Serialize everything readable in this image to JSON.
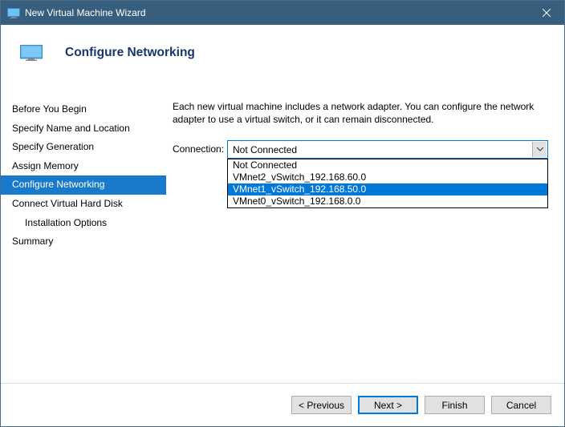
{
  "titlebar": {
    "title": "New Virtual Machine Wizard",
    "accent": "#385e7e"
  },
  "header": {
    "title": "Configure Networking",
    "title_color": "#17356b"
  },
  "sidebar": {
    "items": [
      {
        "label": "Before You Begin",
        "active": false,
        "indent": false
      },
      {
        "label": "Specify Name and Location",
        "active": false,
        "indent": false
      },
      {
        "label": "Specify Generation",
        "active": false,
        "indent": false
      },
      {
        "label": "Assign Memory",
        "active": false,
        "indent": false
      },
      {
        "label": "Configure Networking",
        "active": true,
        "indent": false
      },
      {
        "label": "Connect Virtual Hard Disk",
        "active": false,
        "indent": false
      },
      {
        "label": "Installation Options",
        "active": false,
        "indent": true
      },
      {
        "label": "Summary",
        "active": false,
        "indent": false
      }
    ]
  },
  "content": {
    "description": "Each new virtual machine includes a network adapter. You can configure the network adapter to use a virtual switch, or it can remain disconnected.",
    "connection_label": "Connection:",
    "combo": {
      "selected": "Not Connected",
      "options": [
        {
          "label": "Not Connected",
          "selected": false
        },
        {
          "label": "VMnet2_vSwitch_192.168.60.0",
          "selected": false
        },
        {
          "label": "VMnet1_vSwitch_192.168.50.0",
          "selected": true
        },
        {
          "label": "VMnet0_vSwitch_192.168.0.0",
          "selected": false
        }
      ]
    }
  },
  "footer": {
    "previous": "< Previous",
    "next": "Next >",
    "finish": "Finish",
    "cancel": "Cancel"
  },
  "colors": {
    "selection": "#1979ca",
    "highlight": "#0078d7",
    "button_bg": "#e1e1e1",
    "button_border": "#adadad"
  }
}
